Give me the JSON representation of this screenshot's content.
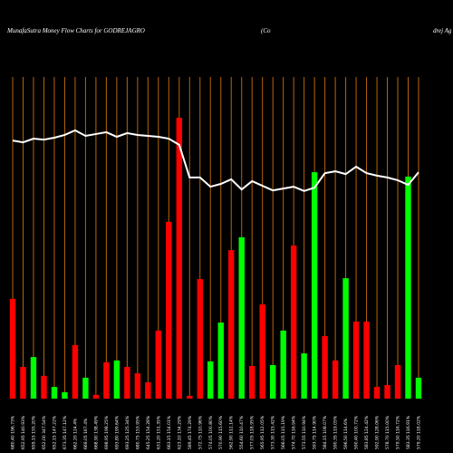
{
  "chart_data": {
    "type": "bar",
    "title": "MunafaSutra  Money Flow  Charts for GODREJAGRO",
    "title_parts": [
      "(Co",
      "drej Ag"
    ],
    "categories": [
      "680.40 196.73%",
      "652.95 140.93%",
      "659.15 155.20%",
      "652.00 347.54%",
      "652.15 147.22%",
      "673.35 147.12%",
      "662.20 124.4%",
      "669.05 167.4%",
      "668.90 138.49%",
      "698.95 198.25%",
      "693.80 199.64%",
      "693.25 125.34%",
      "680.75 153.95%",
      "645.25 154.28%",
      "631.20 151.35%",
      "663.15 154.01%",
      "623.10 134.29%",
      "589.45 174.29%",
      "572.75 110.96%",
      "574.05 100.80%",
      "570.90 115.60%",
      "562.90 112.14%",
      "554.60 110.47%",
      "577.05 118.95%",
      "565.95 112.05%",
      "573.30 115.42%",
      "566.05 115.19%",
      "574.70 116.94%",
      "573.55 110.94%",
      "593.75 114.90%",
      "584.15 108.07%",
      "590.35 119.05%",
      "596.50 114.6%",
      "590.40 100.72%",
      "583.85 124.42%",
      "592.90 128.06%",
      "578.70 115.00%",
      "579.50 116.72%",
      "583.35 116.91%",
      "579.20 118.02%"
    ],
    "values": [
      32.4,
      10.3,
      13.5,
      7.4,
      3.8,
      2.1,
      17.4,
      6.8,
      1.2,
      11.8,
      12.4,
      10.3,
      8.2,
      5.3,
      22.1,
      57.4,
      91.2,
      0.9,
      38.8,
      12.1,
      24.7,
      48.2,
      52.4,
      10.6,
      30.6,
      10.9,
      22.1,
      49.7,
      14.7,
      73.5,
      20.3,
      12.4,
      39.1,
      25.0,
      25.0,
      3.8,
      4.4,
      10.9,
      72.1,
      6.8
    ],
    "colors": [
      "#ff0000",
      "#ff0000",
      "#00ff00",
      "#ff0000",
      "#00ff00",
      "#00ff00",
      "#ff0000",
      "#00ff00",
      "#ff0000",
      "#ff0000",
      "#00ff00",
      "#ff0000",
      "#ff0000",
      "#ff0000",
      "#ff0000",
      "#ff0000",
      "#ff0000",
      "#ff0000",
      "#ff0000",
      "#00ff00",
      "#00ff00",
      "#ff0000",
      "#00ff00",
      "#ff0000",
      "#ff0000",
      "#00ff00",
      "#00ff00",
      "#ff0000",
      "#00ff00",
      "#00ff00",
      "#ff0000",
      "#ff0000",
      "#00ff00",
      "#ff0000",
      "#ff0000",
      "#ff0000",
      "#ff0000",
      "#ff0000",
      "#00ff00",
      "#00ff00"
    ],
    "line": {
      "color": "#ffffff",
      "values": [
        83.8,
        83.2,
        84.4,
        84.1,
        84.7,
        85.6,
        87.1,
        85.3,
        85.9,
        86.5,
        85.0,
        86.2,
        85.6,
        85.3,
        85.0,
        84.4,
        82.4,
        71.8,
        71.8,
        68.8,
        69.7,
        71.2,
        67.9,
        70.6,
        69.1,
        67.6,
        68.2,
        68.8,
        67.4,
        68.5,
        73.2,
        73.8,
        72.9,
        75.3,
        73.2,
        72.4,
        71.8,
        70.9,
        69.4,
        73.5
      ]
    },
    "ylim": [
      0,
      100
    ],
    "grid_color": "#b8650b"
  }
}
